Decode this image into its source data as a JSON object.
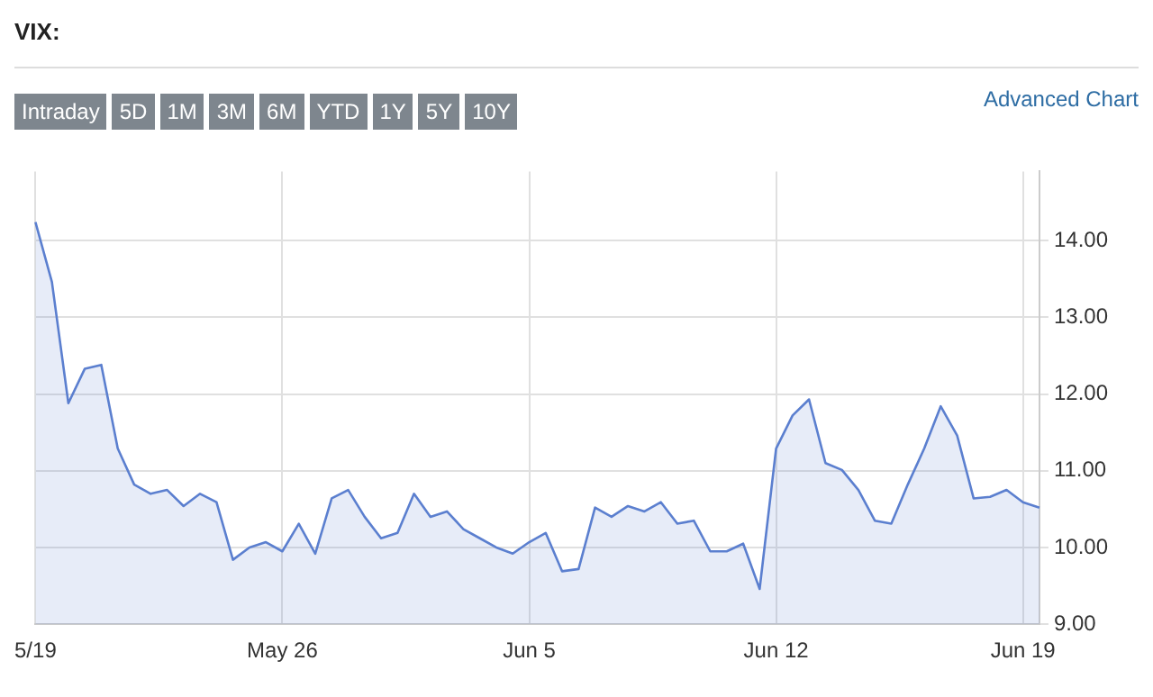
{
  "chart_data": {
    "type": "area",
    "title": "VIX:",
    "categories": [
      "5/19",
      null,
      null,
      null,
      null,
      null,
      null,
      null,
      null,
      null,
      null,
      null,
      null,
      null,
      null,
      "May 26",
      null,
      null,
      null,
      null,
      null,
      null,
      null,
      null,
      null,
      null,
      null,
      null,
      null,
      null,
      "Jun 5",
      null,
      null,
      null,
      null,
      null,
      null,
      null,
      null,
      null,
      null,
      null,
      null,
      null,
      null,
      "Jun 12",
      null,
      null,
      null,
      null,
      null,
      null,
      null,
      null,
      null,
      null,
      null,
      null,
      null,
      null,
      "Jun 19",
      null
    ],
    "series": [
      {
        "color": "#5b7fcf",
        "values": [
          14.24,
          13.46,
          11.88,
          12.33,
          12.38,
          11.29,
          10.82,
          10.7,
          10.75,
          10.54,
          10.7,
          10.59,
          9.84,
          10.0,
          10.07,
          9.95,
          10.31,
          9.92,
          10.64,
          10.75,
          10.4,
          10.12,
          10.19,
          10.7,
          10.4,
          10.47,
          10.24,
          10.12,
          10.0,
          9.92,
          10.07,
          10.19,
          9.69,
          9.72,
          10.52,
          10.4,
          10.54,
          10.47,
          10.59,
          10.31,
          10.35,
          9.95,
          9.95,
          10.05,
          9.46,
          11.29,
          11.72,
          11.93,
          11.1,
          11.01,
          10.75,
          10.35,
          10.31,
          10.82,
          11.29,
          11.84,
          11.46,
          10.64,
          10.66,
          10.75,
          10.59,
          10.52
        ]
      }
    ],
    "ylim": [
      9,
      14.9
    ],
    "yticks": [
      {
        "value": 9,
        "label": "9.00"
      },
      {
        "value": 10,
        "label": "10.00"
      },
      {
        "value": 11,
        "label": "11.00"
      },
      {
        "value": 12,
        "label": "12.00"
      },
      {
        "value": 13,
        "label": "13.00"
      },
      {
        "value": 14,
        "label": "14.00"
      }
    ],
    "grid": true,
    "annotations": [
      "Intraday",
      "5D",
      "1M",
      "3M",
      "6M",
      "YTD",
      "1Y",
      "5Y",
      "10Y",
      "Advanced Chart"
    ]
  }
}
